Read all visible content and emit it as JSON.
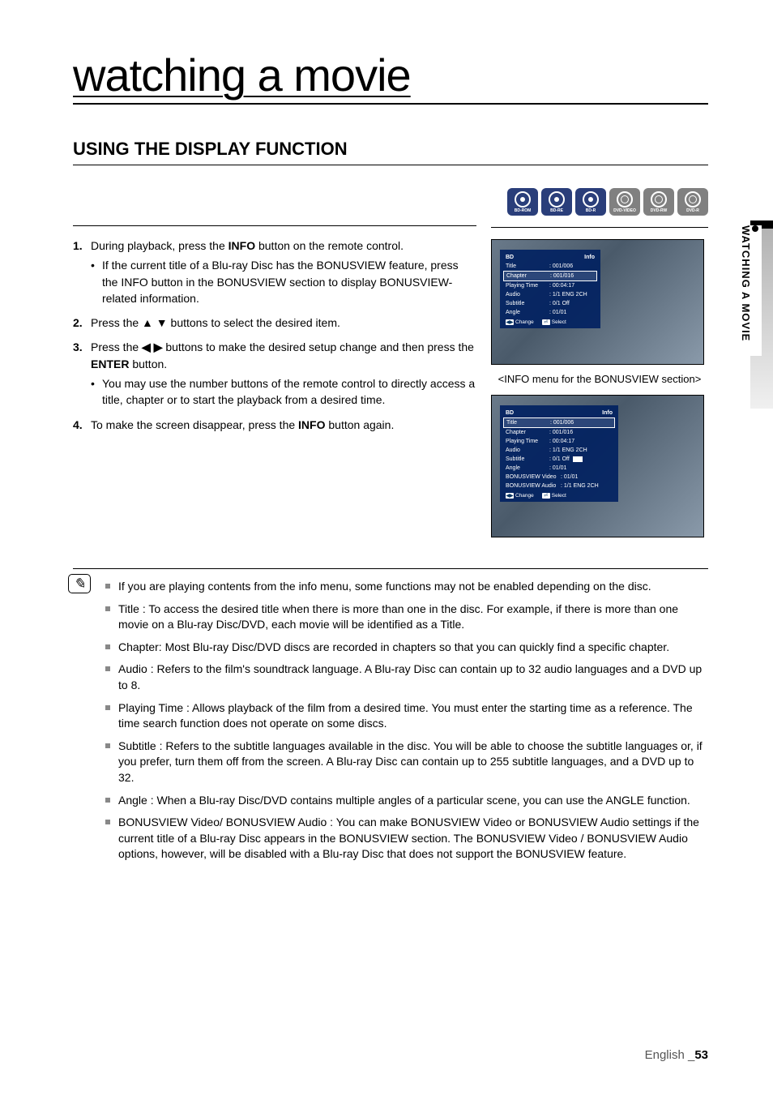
{
  "page": {
    "chapter_title": "watching a movie",
    "section_title": "USING THE DISPLAY FUNCTION",
    "footer_lang": "English",
    "footer_sep": "_",
    "footer_page": "53"
  },
  "side_tab": {
    "label": "WATCHING A MOVIE"
  },
  "disc_icons": [
    {
      "label": "BD-ROM",
      "variant": "blue",
      "inner": "dot"
    },
    {
      "label": "BD-RE",
      "variant": "blue",
      "inner": "dot"
    },
    {
      "label": "BD-R",
      "variant": "blue",
      "inner": "dot"
    },
    {
      "label": "DVD-VIDEO",
      "variant": "gray",
      "inner": "ring"
    },
    {
      "label": "DVD-RW",
      "variant": "gray",
      "inner": "ring"
    },
    {
      "label": "DVD-R",
      "variant": "gray",
      "inner": "ring"
    }
  ],
  "steps": [
    {
      "num": "1.",
      "text_pre": "During playback, press the ",
      "text_bold": "INFO",
      "text_post": " button on the remote control.",
      "sub_text": "If the current title of a Blu-ray Disc has the BONUSVIEW feature, press the INFO button in the BONUSVIEW section to display BONUSVIEW-related information."
    },
    {
      "num": "2.",
      "text_pre": "Press the ",
      "text_arrows": "▲ ▼",
      "text_post": " buttons to select the desired item."
    },
    {
      "num": "3.",
      "text_pre": "Press the ",
      "text_arrows": "◀ ▶",
      "text_mid": " buttons to make the desired setup change and then press the ",
      "text_bold": "ENTER",
      "text_post": " button.",
      "sub_text": "You may use the number buttons of the remote control to directly access a title, chapter or to start the playback from a desired time."
    },
    {
      "num": "4.",
      "text_pre": "To make the screen disappear, press the ",
      "text_bold": "INFO",
      "text_post": " button again."
    }
  ],
  "osd1": {
    "header_left": "BD",
    "header_right": "Info",
    "rows": [
      {
        "k": "Title",
        "v": ": 001/006"
      },
      {
        "k": "Chapter",
        "v": ": 001/016",
        "hl": true
      },
      {
        "k": "Playing Time",
        "v": ": 00:04:17"
      },
      {
        "k": "Audio",
        "v": ": 1/1 ENG 2CH"
      },
      {
        "k": "Subtitle",
        "v": ": 0/1 Off"
      },
      {
        "k": "Angle",
        "v": ": 01/01"
      }
    ],
    "footer": [
      {
        "icon": "◀▶",
        "label": "Change"
      },
      {
        "icon": "⏎",
        "label": "Select"
      }
    ]
  },
  "caption": "<INFO menu for the BONUSVIEW section>",
  "osd2": {
    "header_left": "BD",
    "header_right": "Info",
    "rows": [
      {
        "k": "Title",
        "v": ": 001/006",
        "hl": true
      },
      {
        "k": "Chapter",
        "v": ": 001/016"
      },
      {
        "k": "Playing Time",
        "v": ": 00:04:17"
      },
      {
        "k": "Audio",
        "v": ": 1/1 ENG 2CH"
      },
      {
        "k": "Subtitle",
        "v": ": 0/1 Off",
        "bonus": true
      },
      {
        "k": "Angle",
        "v": ": 01/01"
      },
      {
        "k": "BONUSVIEW Video",
        "v": ": 01/01",
        "wide": true
      },
      {
        "k": "BONUSVIEW Audio",
        "v": ": 1/1 ENG 2CH",
        "wide": true
      }
    ],
    "footer": [
      {
        "icon": "◀▶",
        "label": "Change"
      },
      {
        "icon": "⏎",
        "label": "Select"
      }
    ]
  },
  "notes": [
    "If you are playing contents from the info menu, some functions may not be enabled depending on the disc.",
    "Title : To access the desired title when there is more than one in the disc. For example, if there is more than one movie on a Blu-ray Disc/DVD, each movie will be identified as a Title.",
    "Chapter: Most Blu-ray Disc/DVD discs are recorded in chapters so that you can quickly find a specific chapter.",
    "Audio : Refers to the film's soundtrack language. A Blu-ray Disc can contain up to 32 audio languages and a DVD up to 8.",
    "Playing Time : Allows playback of the film from a desired time. You must enter the starting time as a reference. The time search function does not operate on some discs.",
    "Subtitle : Refers to the subtitle languages available in the disc. You will be able to choose the subtitle languages or, if you prefer, turn them off from the screen. A Blu-ray Disc can contain up to 255 subtitle languages, and a DVD up to 32.",
    "Angle : When a Blu-ray Disc/DVD contains multiple angles of a particular scene, you can use the ANGLE function.",
    "BONUSVIEW Video/ BONUSVIEW Audio : You can make BONUSVIEW Video or BONUSVIEW Audio settings if the current title of a Blu-ray Disc appears in the BONUSVIEW section. The BONUSVIEW Video / BONUSVIEW Audio options, however, will be disabled with a Blu-ray Disc that does not support the BONUSVIEW feature."
  ]
}
